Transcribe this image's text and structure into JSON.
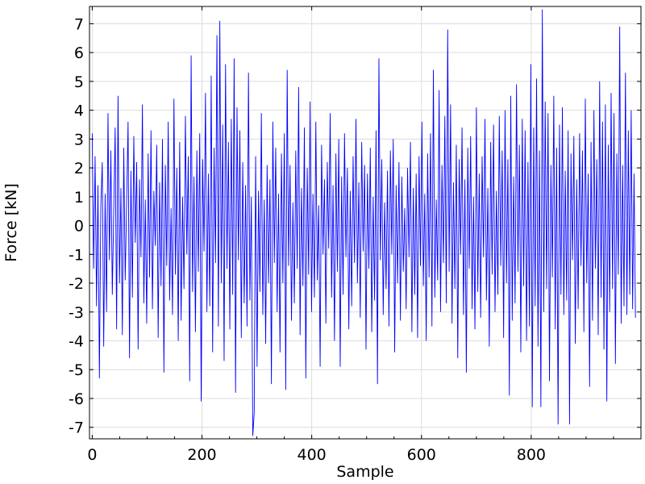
{
  "chart_data": {
    "type": "line",
    "title": "",
    "xlabel": "Sample",
    "ylabel": "Force [kN]",
    "xlim": [
      -5,
      1000
    ],
    "ylim": [
      -7.4,
      7.6
    ],
    "xticks": [
      0,
      200,
      400,
      600,
      800
    ],
    "xtick_labels": [
      "0",
      "200",
      "400",
      "600",
      "800"
    ],
    "yticks": [
      7,
      6,
      5,
      4,
      3,
      2,
      1,
      0,
      -1,
      -2,
      -3,
      -4,
      -5,
      -6,
      -7
    ],
    "ytick_labels": [
      "7",
      "6",
      "5",
      "4",
      "3",
      "2",
      "1",
      "0",
      "-1",
      "-2",
      "-3",
      "-4",
      "-5",
      "-6",
      "-7"
    ],
    "grid": true,
    "line_color": "#0000ff",
    "series": [
      {
        "name": "",
        "x_start": 0,
        "x_step": 1,
        "values": [
          3.2,
          -1.5,
          2.4,
          -2.8,
          1.4,
          -5.3,
          0.7,
          2.2,
          -4.2,
          1.1,
          -3.0,
          3.9,
          -1.2,
          2.6,
          -2.4,
          0.5,
          3.4,
          -3.6,
          4.5,
          -2.0,
          1.3,
          -3.8,
          2.7,
          -1.9,
          0.8,
          3.6,
          -4.6,
          1.9,
          -2.5,
          3.1,
          -0.6,
          2.2,
          -4.3,
          1.6,
          -1.1,
          4.2,
          -2.7,
          0.9,
          -3.4,
          2.5,
          -1.8,
          3.3,
          -2.9,
          1.2,
          -0.7,
          2.8,
          -3.9,
          1.5,
          -2.1,
          3.0,
          -5.1,
          2.1,
          -1.4,
          3.6,
          -2.6,
          0.6,
          -3.1,
          4.4,
          -1.7,
          2.0,
          -4.0,
          2.9,
          -3.3,
          1.0,
          -2.2,
          3.8,
          -1.0,
          2.4,
          -5.4,
          5.9,
          -2.3,
          1.7,
          -3.7,
          2.6,
          -1.6,
          3.2,
          -6.1,
          2.3,
          -0.9,
          4.6,
          -3.0,
          1.8,
          -2.8,
          5.2,
          -4.4,
          2.7,
          -1.3,
          6.6,
          -3.5,
          7.1,
          -2.0,
          3.5,
          -4.7,
          5.6,
          -1.5,
          2.9,
          -3.6,
          3.7,
          -2.4,
          5.8,
          -5.8,
          4.1,
          -1.2,
          3.3,
          -3.9,
          2.2,
          -2.7,
          1.4,
          -3.5,
          5.3,
          -2.6,
          1.0,
          -7.3,
          -6.5,
          2.4,
          -4.9,
          1.2,
          -2.3,
          3.9,
          -3.1,
          0.9,
          -4.1,
          2.1,
          -2.0,
          1.6,
          -5.5,
          3.6,
          -1.3,
          2.7,
          -3.0,
          1.1,
          -4.4,
          2.5,
          -2.0,
          3.2,
          -5.7,
          5.4,
          -1.4,
          2.1,
          -3.3,
          0.8,
          -2.7,
          2.6,
          -1.5,
          4.8,
          -3.8,
          1.3,
          -2.1,
          3.4,
          -5.3,
          2.0,
          -1.7,
          4.3,
          -3.0,
          1.1,
          -2.5,
          3.6,
          -1.9,
          0.7,
          -4.9,
          2.8,
          -1.0,
          1.6,
          -3.4,
          2.2,
          -0.8,
          3.9,
          -2.5,
          1.4,
          -4.0,
          2.5,
          -1.6,
          3.0,
          -4.9,
          1.7,
          -2.4,
          3.2,
          -1.1,
          2.0,
          -3.6,
          1.2,
          -2.8,
          2.4,
          -1.3,
          3.7,
          -2.0,
          1.5,
          -3.2,
          2.9,
          -0.9,
          2.1,
          -4.3,
          1.8,
          -1.5,
          2.7,
          -3.7,
          1.0,
          -2.6,
          3.3,
          -5.5,
          5.8,
          -1.2,
          2.3,
          -3.1,
          0.8,
          -2.2,
          1.9,
          -3.5,
          2.6,
          -1.0,
          3.0,
          -4.4,
          1.4,
          -2.0,
          2.2,
          -3.3,
          1.7,
          -1.6,
          0.6,
          -2.9,
          2.0,
          -1.1,
          2.9,
          -3.7,
          1.3,
          -2.4,
          1.8,
          -3.9,
          2.4,
          -1.4,
          3.6,
          -2.1,
          1.1,
          -4.0,
          2.5,
          -1.8,
          3.2,
          -3.5,
          5.4,
          -2.5,
          0.9,
          -1.9,
          4.7,
          -3.0,
          2.1,
          -1.3,
          3.8,
          -2.7,
          6.8,
          -1.6,
          4.2,
          -3.4,
          1.5,
          -2.2,
          2.8,
          -4.6,
          2.3,
          -1.0,
          3.4,
          -3.1,
          1.6,
          -5.1,
          2.7,
          -1.5,
          3.1,
          -2.9,
          1.0,
          -3.6,
          4.1,
          -2.3,
          1.8,
          -3.2,
          2.4,
          -1.1,
          3.7,
          -2.6,
          1.3,
          -4.2,
          2.9,
          -1.7,
          3.5,
          -3.0,
          1.2,
          -2.4,
          3.8,
          -1.4,
          2.6,
          -3.9,
          4.0,
          -2.0,
          2.3,
          -5.9,
          4.5,
          -3.3,
          1.7,
          -2.7,
          4.9,
          -1.6,
          2.8,
          -4.4,
          3.7,
          -2.1,
          3.3,
          -4.0,
          2.2,
          -3.5,
          5.6,
          -6.3,
          3.4,
          -2.8,
          5.1,
          -4.2,
          2.6,
          -6.3,
          7.5,
          -3.0,
          4.3,
          -2.2,
          3.9,
          -5.4,
          2.1,
          -1.8,
          4.5,
          -3.6,
          2.7,
          -6.9,
          3.5,
          -2.4,
          4.1,
          -3.1,
          1.9,
          -2.6,
          3.3,
          -6.9,
          2.5,
          -1.2,
          3.1,
          -4.1,
          1.6,
          -2.9,
          3.2,
          -1.4,
          2.6,
          -3.7,
          4.4,
          -2.0,
          1.8,
          -5.6,
          2.9,
          -3.3,
          4.0,
          -1.5,
          2.3,
          -3.8,
          5.0,
          -2.5,
          3.6,
          -4.3,
          4.2,
          -6.1,
          2.8,
          -3.0,
          4.6,
          -2.2,
          3.9,
          -4.8,
          2.5,
          -1.7,
          6.9,
          -3.4,
          2.1,
          -2.8,
          5.3,
          -3.1,
          3.3,
          -2.4,
          4.0,
          -2.9,
          1.8,
          -3.2
        ]
      }
    ]
  }
}
